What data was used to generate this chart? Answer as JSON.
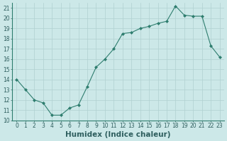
{
  "x": [
    0,
    1,
    2,
    3,
    4,
    5,
    6,
    7,
    8,
    9,
    10,
    11,
    12,
    13,
    14,
    15,
    16,
    17,
    18,
    19,
    20,
    21,
    22,
    23
  ],
  "y": [
    14,
    13,
    12,
    11.7,
    10.5,
    10.5,
    11.2,
    11.5,
    13.3,
    15.2,
    16.0,
    17.0,
    18.5,
    18.6,
    19.0,
    19.2,
    19.5,
    19.7,
    21.2,
    20.3,
    20.2,
    20.2,
    17.3,
    16.2
  ],
  "line_color": "#2e7d6e",
  "marker": "D",
  "marker_size": 2.0,
  "bg_color": "#cce8e8",
  "grid_color": "#b0d0d0",
  "xlabel": "Humidex (Indice chaleur)",
  "ylim": [
    10,
    21.5
  ],
  "xlim": [
    -0.5,
    23.5
  ],
  "yticks": [
    10,
    11,
    12,
    13,
    14,
    15,
    16,
    17,
    18,
    19,
    20,
    21
  ],
  "xticks": [
    0,
    1,
    2,
    3,
    4,
    5,
    6,
    7,
    8,
    9,
    10,
    11,
    12,
    13,
    14,
    15,
    16,
    17,
    18,
    19,
    20,
    21,
    22,
    23
  ],
  "tick_fontsize": 5.5,
  "xlabel_fontsize": 7.5,
  "spine_color": "#2e7d6e"
}
